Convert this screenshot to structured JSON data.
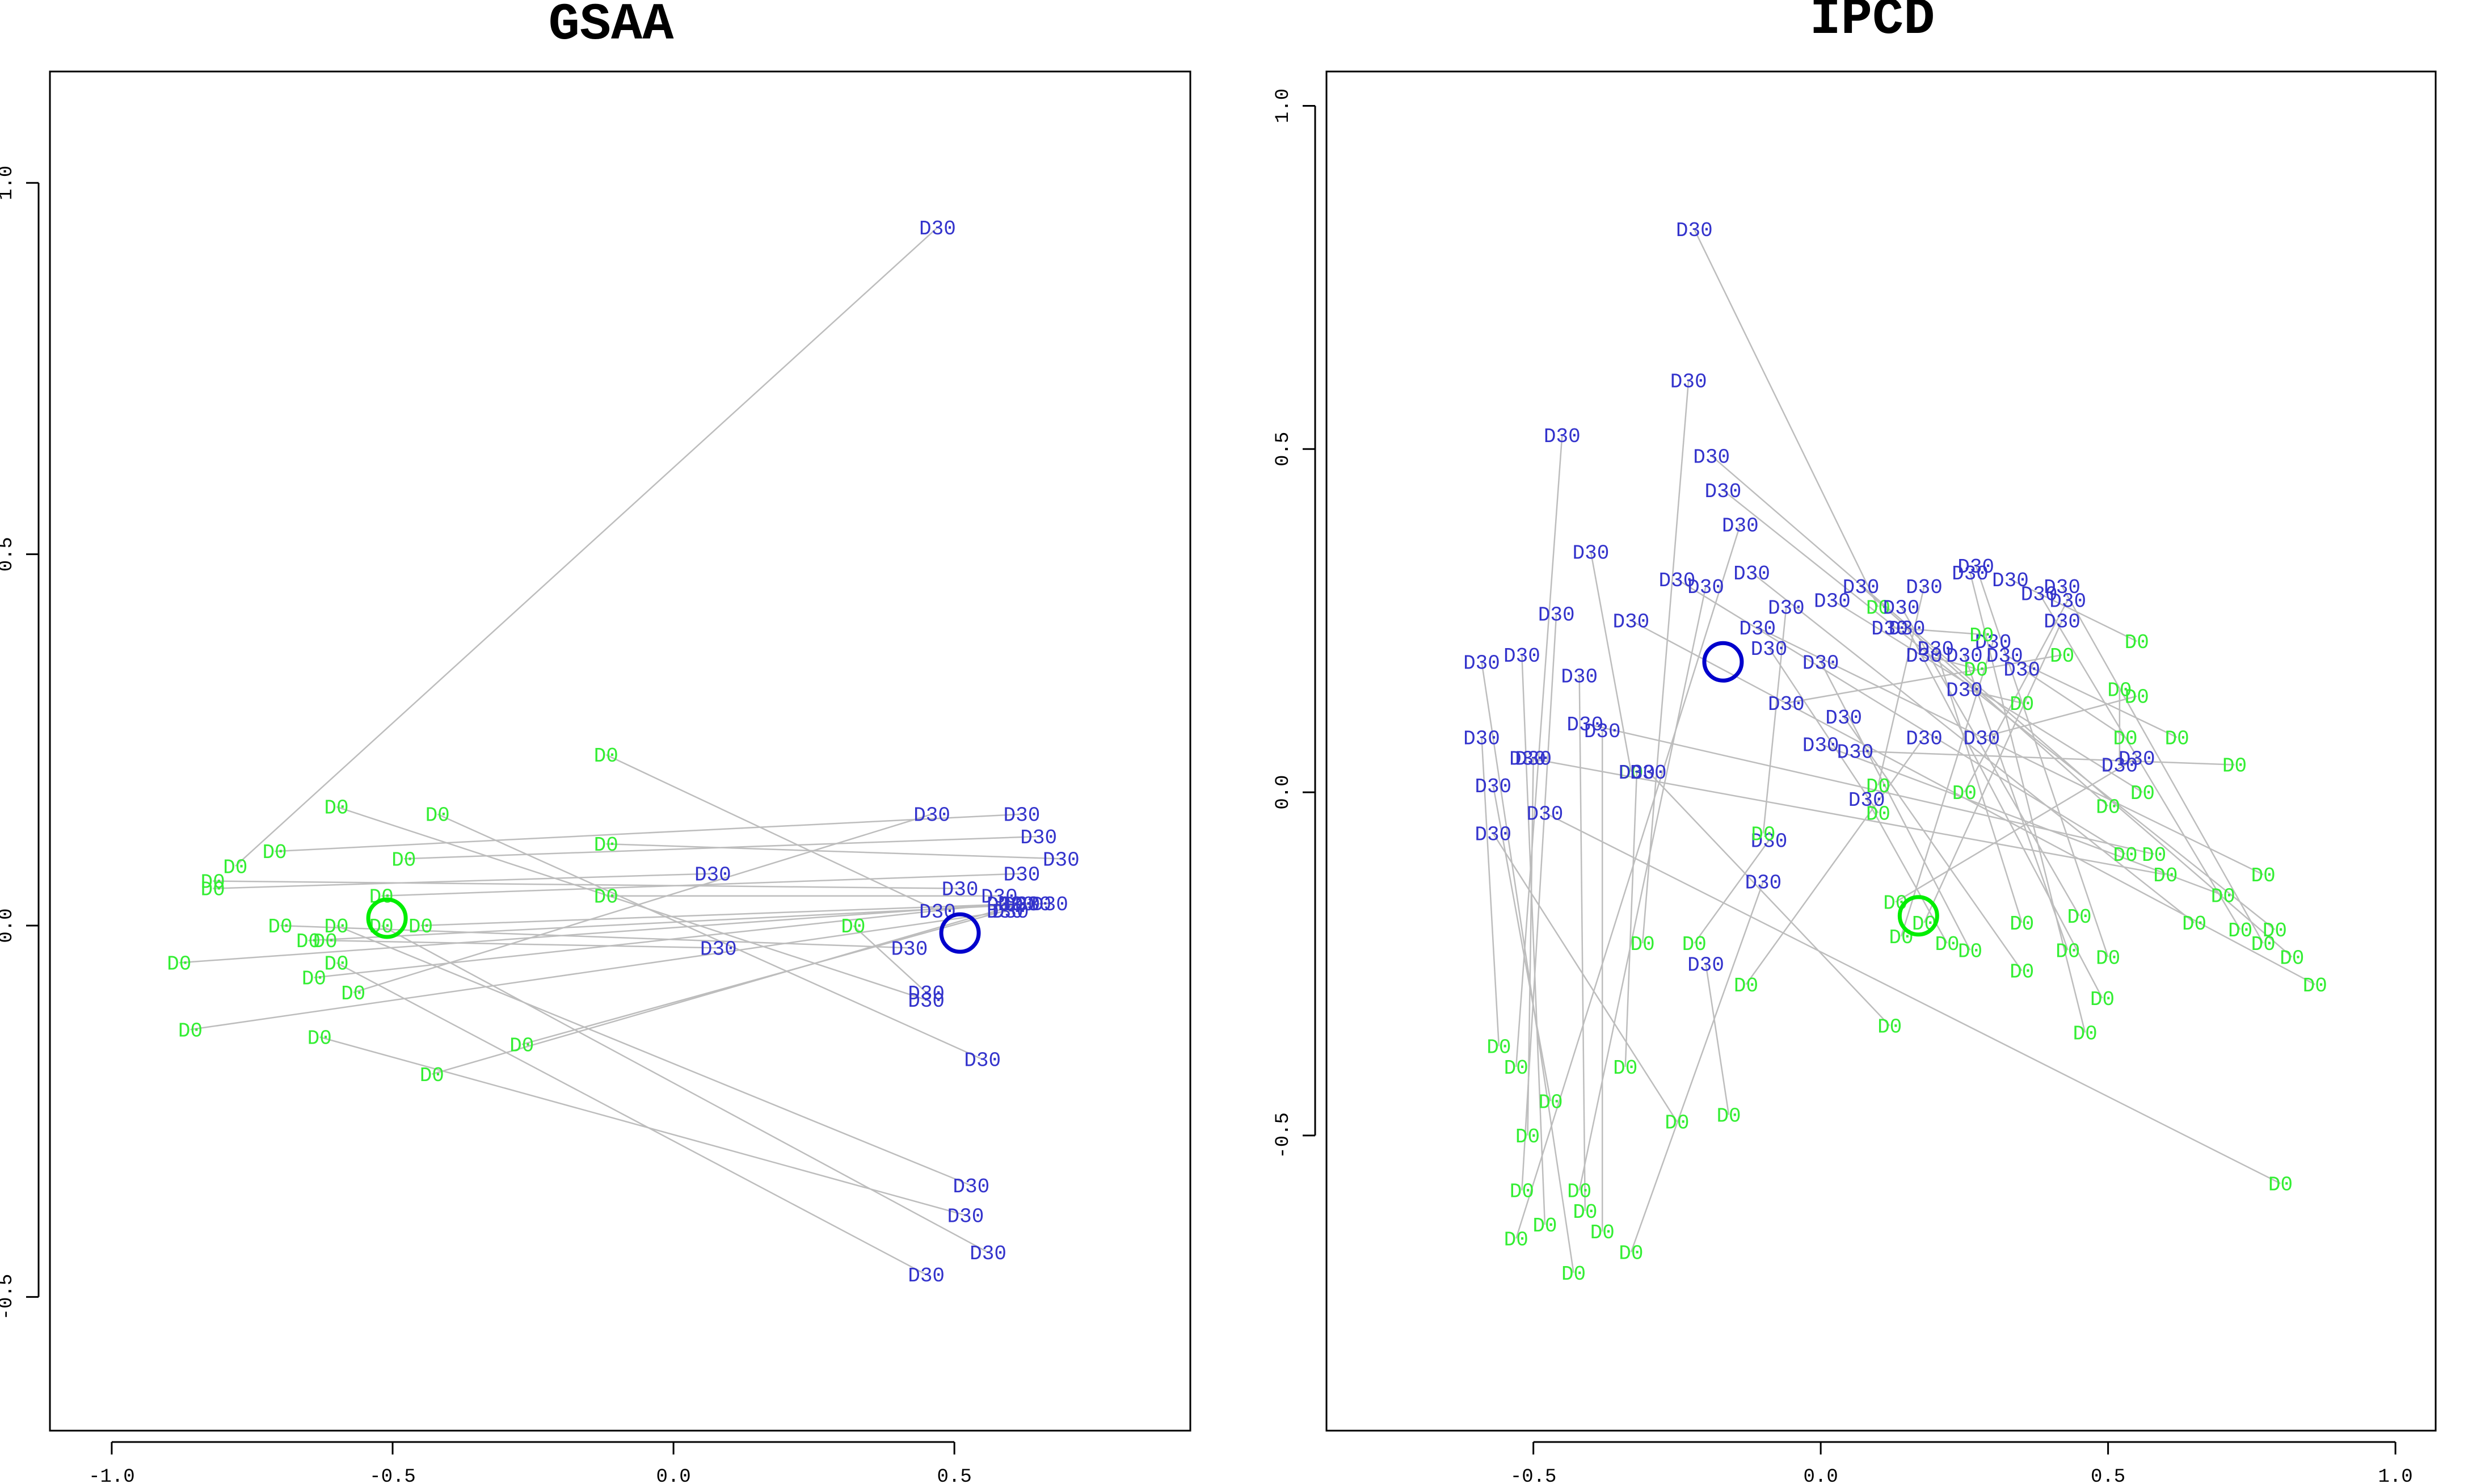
{
  "colors": {
    "d0": "#33ee33",
    "d30": "#3333cc",
    "segment": "#bdbdbd",
    "centroid_d0": "#00ee00",
    "centroid_d30": "#0000cc"
  },
  "chart_data": [
    {
      "type": "scatter",
      "title": "GSAA",
      "xlabel": "",
      "ylabel": "",
      "xlim": [
        -1.11,
        0.92
      ],
      "ylim": [
        -0.68,
        1.15
      ],
      "xticks": [
        -1.0,
        -0.5,
        0.0,
        0.5
      ],
      "xtick_labels": [
        "-1.0",
        "-0.5",
        "0.0",
        "0.5"
      ],
      "yticks": [
        -0.5,
        0.0,
        0.5,
        1.0
      ],
      "ytick_labels": [
        "-0.5",
        "0.0",
        "0.5",
        "1.0"
      ],
      "centroids": {
        "D0": [
          -0.51,
          0.01
        ],
        "D30": [
          0.51,
          -0.01
        ]
      },
      "pairs": [
        {
          "d0": [
            -0.78,
            0.08
          ],
          "d30": [
            0.47,
            0.94
          ]
        },
        {
          "d0": [
            -0.12,
            0.23
          ],
          "d30": [
            0.47,
            0.02
          ]
        },
        {
          "d0": [
            -0.6,
            0.16
          ],
          "d30": [
            0.45,
            -0.1
          ]
        },
        {
          "d0": [
            -0.42,
            0.15
          ],
          "d30": [
            0.55,
            -0.18
          ]
        },
        {
          "d0": [
            -0.71,
            0.1
          ],
          "d30": [
            0.62,
            0.15
          ]
        },
        {
          "d0": [
            -0.48,
            0.09
          ],
          "d30": [
            0.65,
            0.12
          ]
        },
        {
          "d0": [
            -0.12,
            0.11
          ],
          "d30": [
            0.69,
            0.09
          ]
        },
        {
          "d0": [
            -0.82,
            0.05
          ],
          "d30": [
            0.07,
            0.07
          ]
        },
        {
          "d0": [
            -0.52,
            0.04
          ],
          "d30": [
            0.62,
            0.07
          ]
        },
        {
          "d0": [
            -0.82,
            0.06
          ],
          "d30": [
            0.51,
            0.05
          ]
        },
        {
          "d0": [
            -0.12,
            0.04
          ],
          "d30": [
            0.58,
            0.04
          ]
        },
        {
          "d0": [
            -0.45,
            0.0
          ],
          "d30": [
            0.64,
            0.03
          ]
        },
        {
          "d0": [
            -0.88,
            -0.05
          ],
          "d30": [
            0.61,
            0.03
          ]
        },
        {
          "d0": [
            -0.65,
            -0.02
          ],
          "d30": [
            0.67,
            0.03
          ]
        },
        {
          "d0": [
            -0.64,
            -0.07
          ],
          "d30": [
            0.59,
            0.03
          ]
        },
        {
          "d0": [
            -0.57,
            -0.09
          ],
          "d30": [
            0.46,
            0.15
          ]
        },
        {
          "d0": [
            -0.86,
            -0.14
          ],
          "d30": [
            0.6,
            0.02
          ]
        },
        {
          "d0": [
            -0.62,
            -0.02
          ],
          "d30": [
            0.08,
            -0.03
          ]
        },
        {
          "d0": [
            -0.7,
            0.0
          ],
          "d30": [
            0.42,
            -0.03
          ]
        },
        {
          "d0": [
            -0.27,
            -0.16
          ],
          "d30": [
            0.59,
            0.02
          ]
        },
        {
          "d0": [
            0.32,
            0.0
          ],
          "d30": [
            0.45,
            -0.09
          ]
        },
        {
          "d0": [
            -0.43,
            -0.2
          ],
          "d30": [
            0.62,
            0.03
          ]
        },
        {
          "d0": [
            -0.63,
            -0.15
          ],
          "d30": [
            0.52,
            -0.39
          ]
        },
        {
          "d0": [
            -0.6,
            0.0
          ],
          "d30": [
            0.53,
            -0.35
          ]
        },
        {
          "d0": [
            -0.52,
            0.0
          ],
          "d30": [
            0.56,
            -0.44
          ]
        },
        {
          "d0": [
            -0.6,
            -0.05
          ],
          "d30": [
            0.45,
            -0.47
          ]
        }
      ]
    },
    {
      "type": "scatter",
      "title": "IPCD",
      "xlabel": "",
      "ylabel": "",
      "xlim": [
        -0.86,
        1.07
      ],
      "ylim": [
        -0.93,
        1.05
      ],
      "xticks": [
        -0.5,
        0.0,
        0.5,
        1.0
      ],
      "xtick_labels": [
        "-0.5",
        "0.0",
        "0.5",
        "1.0"
      ],
      "yticks": [
        -0.5,
        0.0,
        0.5,
        1.0
      ],
      "ytick_labels": [
        "-0.5",
        "0.0",
        "0.5",
        "1.0"
      ],
      "centroids": {
        "D0": [
          0.17,
          -0.18
        ],
        "D30": [
          -0.17,
          0.19
        ]
      },
      "pairs": [
        {
          "d0": [
            0.1,
            0.27
          ],
          "d30": [
            -0.22,
            0.82
          ]
        },
        {
          "d0": [
            -0.31,
            -0.22
          ],
          "d30": [
            -0.23,
            0.6
          ]
        },
        {
          "d0": [
            -0.33,
            0.03
          ],
          "d30": [
            -0.4,
            0.35
          ]
        },
        {
          "d0": [
            -0.53,
            -0.4
          ],
          "d30": [
            -0.45,
            0.52
          ]
        },
        {
          "d0": [
            -0.52,
            -0.58
          ],
          "d30": [
            -0.46,
            0.26
          ]
        },
        {
          "d0": [
            -0.48,
            -0.63
          ],
          "d30": [
            -0.52,
            0.2
          ]
        },
        {
          "d0": [
            -0.43,
            -0.7
          ],
          "d30": [
            -0.59,
            0.19
          ]
        },
        {
          "d0": [
            -0.56,
            -0.37
          ],
          "d30": [
            -0.59,
            0.08
          ]
        },
        {
          "d0": [
            -0.41,
            -0.61
          ],
          "d30": [
            -0.42,
            0.17
          ]
        },
        {
          "d0": [
            -0.38,
            -0.64
          ],
          "d30": [
            -0.38,
            0.09
          ]
        },
        {
          "d0": [
            -0.51,
            -0.5
          ],
          "d30": [
            -0.5,
            0.05
          ]
        },
        {
          "d0": [
            -0.47,
            -0.45
          ],
          "d30": [
            -0.57,
            0.01
          ]
        },
        {
          "d0": [
            -0.25,
            -0.48
          ],
          "d30": [
            -0.57,
            -0.06
          ]
        },
        {
          "d0": [
            -0.34,
            -0.4
          ],
          "d30": [
            -0.32,
            0.03
          ]
        },
        {
          "d0": [
            -0.42,
            -0.58
          ],
          "d30": [
            -0.2,
            0.3
          ]
        },
        {
          "d0": [
            -0.33,
            -0.67
          ],
          "d30": [
            -0.1,
            -0.13
          ]
        },
        {
          "d0": [
            -0.16,
            -0.47
          ],
          "d30": [
            -0.2,
            -0.25
          ]
        },
        {
          "d0": [
            0.12,
            -0.34
          ],
          "d30": [
            -0.3,
            0.03
          ]
        },
        {
          "d0": [
            -0.53,
            -0.65
          ],
          "d30": [
            -0.14,
            0.39
          ]
        },
        {
          "d0": [
            -0.22,
            -0.22
          ],
          "d30": [
            -0.09,
            -0.07
          ]
        },
        {
          "d0": [
            0.42,
            0.2
          ],
          "d30": [
            -0.06,
            0.13
          ]
        },
        {
          "d0": [
            0.65,
            -0.19
          ],
          "d30": [
            -0.12,
            0.32
          ]
        },
        {
          "d0": [
            0.79,
            -0.2
          ],
          "d30": [
            -0.17,
            0.44
          ]
        },
        {
          "d0": [
            0.82,
            -0.24
          ],
          "d30": [
            -0.19,
            0.49
          ]
        },
        {
          "d0": [
            0.86,
            -0.28
          ],
          "d30": [
            -0.33,
            0.25
          ]
        },
        {
          "d0": [
            0.53,
            -0.09
          ],
          "d30": [
            -0.25,
            0.31
          ]
        },
        {
          "d0": [
            0.5,
            -0.02
          ],
          "d30": [
            0.07,
            0.3
          ]
        },
        {
          "d0": [
            0.45,
            -0.18
          ],
          "d30": [
            0.14,
            0.27
          ]
        },
        {
          "d0": [
            0.56,
            0.0
          ],
          "d30": [
            0.02,
            0.28
          ]
        },
        {
          "d0": [
            0.73,
            -0.2
          ],
          "d30": [
            0.38,
            0.29
          ]
        },
        {
          "d0": [
            0.77,
            -0.22
          ],
          "d30": [
            0.42,
            0.3
          ]
        },
        {
          "d0": [
            0.43,
            -0.23
          ],
          "d30": [
            0.25,
            0.2
          ]
        },
        {
          "d0": [
            0.35,
            -0.19
          ],
          "d30": [
            0.2,
            0.21
          ]
        },
        {
          "d0": [
            0.49,
            -0.3
          ],
          "d30": [
            0.15,
            0.24
          ]
        },
        {
          "d0": [
            0.62,
            0.08
          ],
          "d30": [
            0.32,
            0.2
          ]
        },
        {
          "d0": [
            0.52,
            0.15
          ],
          "d30": [
            0.52,
            0.04
          ]
        },
        {
          "d0": [
            0.53,
            0.08
          ],
          "d30": [
            0.35,
            0.18
          ]
        },
        {
          "d0": [
            0.77,
            -0.12
          ],
          "d30": [
            -0.11,
            0.24
          ]
        },
        {
          "d0": [
            0.7,
            -0.15
          ],
          "d30": [
            0.0,
            0.07
          ]
        },
        {
          "d0": [
            0.58,
            -0.09
          ],
          "d30": [
            -0.41,
            0.1
          ]
        },
        {
          "d0": [
            0.72,
            0.04
          ],
          "d30": [
            0.06,
            0.06
          ]
        },
        {
          "d0": [
            0.8,
            -0.57
          ],
          "d30": [
            -0.48,
            -0.03
          ]
        },
        {
          "d0": [
            0.1,
            0.01
          ],
          "d30": [
            0.18,
            0.3
          ]
        },
        {
          "d0": [
            0.18,
            -0.19
          ],
          "d30": [
            0.42,
            0.25
          ]
        },
        {
          "d0": [
            0.13,
            -0.16
          ],
          "d30": [
            0.55,
            0.05
          ]
        },
        {
          "d0": [
            0.5,
            -0.24
          ],
          "d30": [
            0.27,
            0.33
          ]
        },
        {
          "d0": [
            0.14,
            -0.21
          ],
          "d30": [
            0.3,
            0.22
          ]
        },
        {
          "d0": [
            0.26,
            -0.23
          ],
          "d30": [
            0.0,
            0.19
          ]
        },
        {
          "d0": [
            0.35,
            -0.26
          ],
          "d30": [
            0.04,
            0.11
          ]
        },
        {
          "d0": [
            0.46,
            -0.35
          ],
          "d30": [
            0.26,
            0.32
          ]
        },
        {
          "d0": [
            -0.13,
            -0.28
          ],
          "d30": [
            0.18,
            0.08
          ]
        },
        {
          "d0": [
            0.6,
            -0.12
          ],
          "d30": [
            -0.51,
            0.05
          ]
        },
        {
          "d0": [
            0.25,
            0.0
          ],
          "d30": [
            0.43,
            0.28
          ]
        },
        {
          "d0": [
            0.22,
            -0.22
          ],
          "d30": [
            0.08,
            -0.01
          ]
        },
        {
          "d0": [
            0.1,
            -0.03
          ],
          "d30": [
            -0.09,
            0.21
          ]
        },
        {
          "d0": [
            0.28,
            0.23
          ],
          "d30": [
            0.12,
            0.24
          ]
        },
        {
          "d0": [
            0.55,
            0.22
          ],
          "d30": [
            0.33,
            0.31
          ]
        },
        {
          "d0": [
            0.55,
            0.14
          ],
          "d30": [
            0.28,
            0.08
          ]
        },
        {
          "d0": [
            0.35,
            0.13
          ],
          "d30": [
            0.25,
            0.15
          ]
        },
        {
          "d0": [
            0.27,
            0.18
          ],
          "d30": [
            0.18,
            0.2
          ]
        },
        {
          "d0": [
            -0.1,
            -0.06
          ],
          "d30": [
            -0.06,
            0.27
          ]
        }
      ]
    }
  ]
}
